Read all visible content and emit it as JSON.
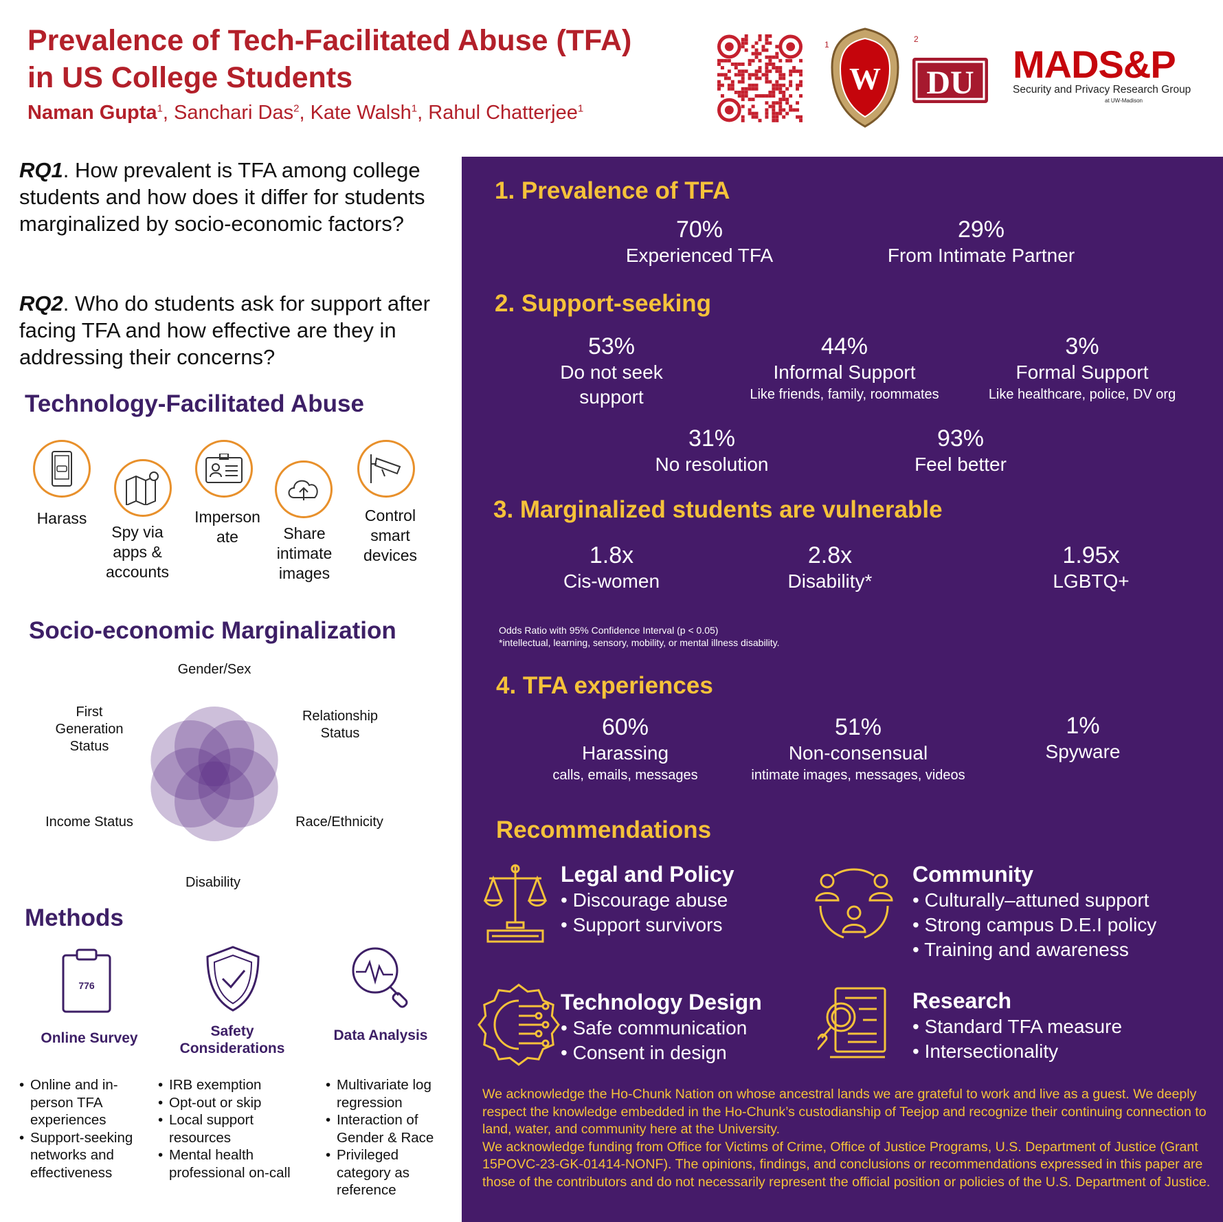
{
  "header": {
    "title_line1": "Prevalence of Tech-Facilitated Abuse (TFA)",
    "title_line2": "in US College Students",
    "authors": [
      {
        "name": "Naman Gupta",
        "aff": "1",
        "sep": ", "
      },
      {
        "name": "Sanchari Das",
        "aff": "2",
        "sep": ", "
      },
      {
        "name": "Kate Walsh",
        "aff": "1",
        "sep": ", "
      },
      {
        "name": "Rahul Chatterjee",
        "aff": "1",
        "sep": ""
      }
    ],
    "logo_uw_aff": "1",
    "logo_du_aff": "2",
    "logo_du_text": "DU",
    "logo_uw_text": "W",
    "madsp_name": "MADS&P",
    "madsp_sub": "Security and Privacy Research Group",
    "madsp_sub2": "at UW-Madison"
  },
  "rq": {
    "rq1_tag": "RQ1",
    "rq1_text": ". How prevalent is TFA among college students and how does it differ for students marginalized by socio-economic factors?",
    "rq2_tag": "RQ2",
    "rq2_text": ". Who do students ask for support after facing TFA and how effective are they in addressing their concerns?"
  },
  "tfa": {
    "heading": "Technology-Facilitated Abuse",
    "items": [
      {
        "label": "Harass",
        "icon": "phone-message-icon"
      },
      {
        "label": "Spy via apps & accounts",
        "icon": "map-pin-icon"
      },
      {
        "label": "Imperson ate",
        "icon": "id-card-icon"
      },
      {
        "label": "Share intimate images",
        "icon": "cloud-upload-icon"
      },
      {
        "label": "Control smart devices",
        "icon": "security-camera-icon"
      }
    ]
  },
  "marg": {
    "heading": "Socio-economic Marginalization",
    "labels": {
      "gender": "Gender/Sex",
      "relationship": "Relationship Status",
      "race": "Race/Ethnicity",
      "disability": "Disability",
      "income": "Income Status",
      "firstgen": "First Generation Status"
    },
    "petal_color": "#5b2c83"
  },
  "methods": {
    "heading": "Methods",
    "survey_count": "776",
    "cols": [
      {
        "title": "Online Survey",
        "items": [
          "Online and in-person TFA experiences",
          "Support-seeking networks and effectiveness"
        ]
      },
      {
        "title": "Safety Considerations",
        "items": [
          "IRB exemption",
          "Opt-out or skip",
          "Local support resources",
          "Mental health professional on-call"
        ]
      },
      {
        "title": "Data Analysis",
        "items": [
          "Multivariate log regression",
          "Interaction of Gender & Race",
          "Privileged category as reference"
        ]
      }
    ]
  },
  "panel": {
    "bg_color": "#451b69",
    "accent_color": "#f5c23a",
    "s1": {
      "heading": "1. Prevalence of TFA",
      "stats": [
        {
          "value": "70%",
          "label": "Experienced TFA"
        },
        {
          "value": "29%",
          "label": "From Intimate Partner"
        }
      ]
    },
    "s2": {
      "heading": "2. Support-seeking",
      "stats": [
        {
          "value": "53%",
          "label": "Do not seek support",
          "sub": ""
        },
        {
          "value": "44%",
          "label": "Informal Support",
          "sub": "Like friends, family, roommates"
        },
        {
          "value": "3%",
          "label": "Formal Support",
          "sub": "Like healthcare, police, DV org"
        },
        {
          "value": "31%",
          "label": "No resolution",
          "sub": ""
        },
        {
          "value": "93%",
          "label": "Feel better",
          "sub": ""
        }
      ]
    },
    "s3": {
      "heading": "3. Marginalized students are vulnerable",
      "stats": [
        {
          "value": "1.8x",
          "label": "Cis-women"
        },
        {
          "value": "2.8x",
          "label": "Disability*"
        },
        {
          "value": "1.95x",
          "label": "LGBTQ+"
        }
      ],
      "note1": "Odds Ratio with 95% Confidence Interval (p < 0.05)",
      "note2": "*intellectual, learning, sensory, mobility, or mental illness disability."
    },
    "s4": {
      "heading": "4. TFA experiences",
      "stats": [
        {
          "value": "60%",
          "label": "Harassing",
          "sub": "calls, emails, messages"
        },
        {
          "value": "51%",
          "label": "Non-consensual",
          "sub": "intimate images, messages, videos"
        },
        {
          "value": "1%",
          "label": "Spyware",
          "sub": ""
        }
      ]
    },
    "rec": {
      "heading": "Recommendations",
      "groups": [
        {
          "title": "Legal and Policy",
          "icon": "scales-of-justice-icon",
          "items": [
            "Discourage abuse",
            "Support survivors"
          ]
        },
        {
          "title": "Community",
          "icon": "people-circle-icon",
          "items": [
            "Culturally–attuned support",
            "Strong campus D.E.I policy",
            "Training and awareness"
          ]
        },
        {
          "title": "Technology Design",
          "icon": "gear-circuit-icon",
          "items": [
            "Safe communication",
            "Consent in design"
          ]
        },
        {
          "title": "Research",
          "icon": "document-magnifier-icon",
          "items": [
            "Standard TFA measure",
            "Intersectionality"
          ]
        }
      ]
    },
    "ack1": "We acknowledge the Ho-Chunk Nation on whose ancestral lands we are grateful to work and live as a guest. We deeply respect the knowledge embedded in the Ho-Chunk’s custodianship of Teejop and recognize their continuing connection to land, water, and community here at the University.",
    "ack2": "We acknowledge funding from Office for Victims of Crime, Office of Justice Programs, U.S. Department of Justice (Grant 15POVC-23-GK-01414-NONF). The opinions, findings, and conclusions or recommendations expressed in this paper are those of the contributors and do not necessarily represent the official position or policies of the U.S. Department of Justice."
  }
}
